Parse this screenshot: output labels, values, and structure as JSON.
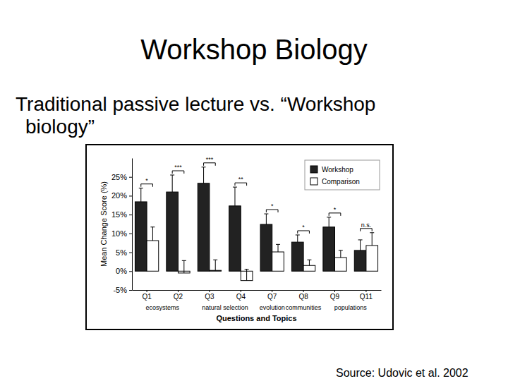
{
  "slide": {
    "title": "Workshop Biology",
    "text": "Traditional passive lecture vs. “Workshop biology”",
    "source": "Source: Udovic et al. 2002"
  },
  "chart_data": {
    "type": "bar",
    "x_label": "Questions and Topics",
    "y_label": "Mean Change Score (%)",
    "categories": [
      "Q1",
      "Q2",
      "Q3",
      "Q4",
      "Q7",
      "Q8",
      "Q9",
      "Q11"
    ],
    "topic_groups": [
      {
        "label": "ecosystems",
        "categories": [
          "Q1",
          "Q2"
        ]
      },
      {
        "label": "natural selection",
        "categories": [
          "Q3",
          "Q4"
        ]
      },
      {
        "label": "evolution",
        "categories": [
          "Q7"
        ]
      },
      {
        "label": "communities",
        "categories": [
          "Q8"
        ]
      },
      {
        "label": "populations",
        "categories": [
          "Q9",
          "Q11"
        ]
      }
    ],
    "series": [
      {
        "name": "Workshop",
        "color": "#222222",
        "values": [
          18.4,
          21.0,
          23.3,
          17.3,
          12.4,
          7.7,
          11.7,
          5.5
        ],
        "errors": [
          3.6,
          4.5,
          4.3,
          5.0,
          2.8,
          1.9,
          2.6,
          2.8
        ]
      },
      {
        "name": "Comparison",
        "color": "#ffffff",
        "values": [
          8.1,
          -0.5,
          0.2,
          -2.5,
          5.1,
          1.5,
          3.6,
          6.8
        ],
        "errors": [
          3.6,
          3.3,
          2.8,
          3.0,
          2.0,
          1.5,
          1.9,
          3.4
        ]
      }
    ],
    "annotations": [
      "*",
      "***",
      "***",
      "**",
      "*",
      "*",
      "*",
      "n.s."
    ],
    "ylim": [
      -5,
      30
    ],
    "yticks": [
      {
        "value": -5,
        "label": "-5%"
      },
      {
        "value": 0,
        "label": "0%"
      },
      {
        "value": 5,
        "label": "5%"
      },
      {
        "value": 10,
        "label": "10%"
      },
      {
        "value": 15,
        "label": "15%"
      },
      {
        "value": 20,
        "label": "20%"
      },
      {
        "value": 25,
        "label": "25%"
      }
    ],
    "legend": "top right"
  }
}
